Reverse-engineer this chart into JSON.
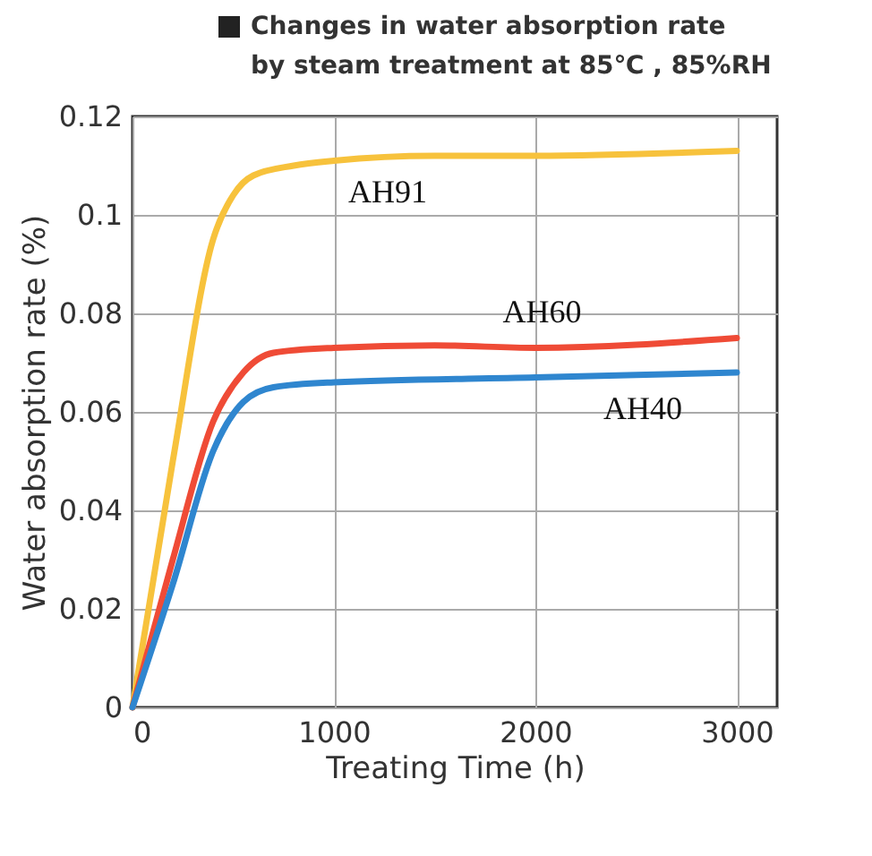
{
  "chart_data": {
    "type": "line",
    "title": "Changes in water absorption rate\nby steam treatment at 85℃ , 85%RH",
    "xlabel": "Treating Time (h)",
    "ylabel": "Water absorption rate (%)",
    "xlim": [
      0,
      3200
    ],
    "xticks": [
      0,
      1000,
      2000,
      3000
    ],
    "ylim": [
      0,
      0.12
    ],
    "yticks": [
      0,
      0.02,
      0.04,
      0.06,
      0.08,
      0.1,
      0.12
    ],
    "grid": true,
    "marker": "none",
    "line_style": "solid",
    "series": [
      {
        "name": "AH91",
        "color": "#f7c23c",
        "x": [
          0,
          200,
          400,
          500,
          600,
          800,
          1000,
          1500,
          2000,
          3000
        ],
        "values": [
          0,
          0.05,
          0.095,
          0.104,
          0.108,
          0.11,
          0.111,
          0.112,
          0.112,
          0.113
        ]
      },
      {
        "name": "AH60",
        "color": "#ef4b36",
        "x": [
          0,
          200,
          400,
          550,
          700,
          1000,
          1500,
          2000,
          3000
        ],
        "values": [
          0,
          0.03,
          0.058,
          0.068,
          0.072,
          0.073,
          0.0735,
          0.073,
          0.075
        ]
      },
      {
        "name": "AH40",
        "color": "#2f86cf",
        "x": [
          0,
          200,
          400,
          550,
          700,
          1000,
          2000,
          3000
        ],
        "values": [
          0,
          0.025,
          0.052,
          0.062,
          0.065,
          0.066,
          0.067,
          0.068
        ]
      }
    ]
  }
}
